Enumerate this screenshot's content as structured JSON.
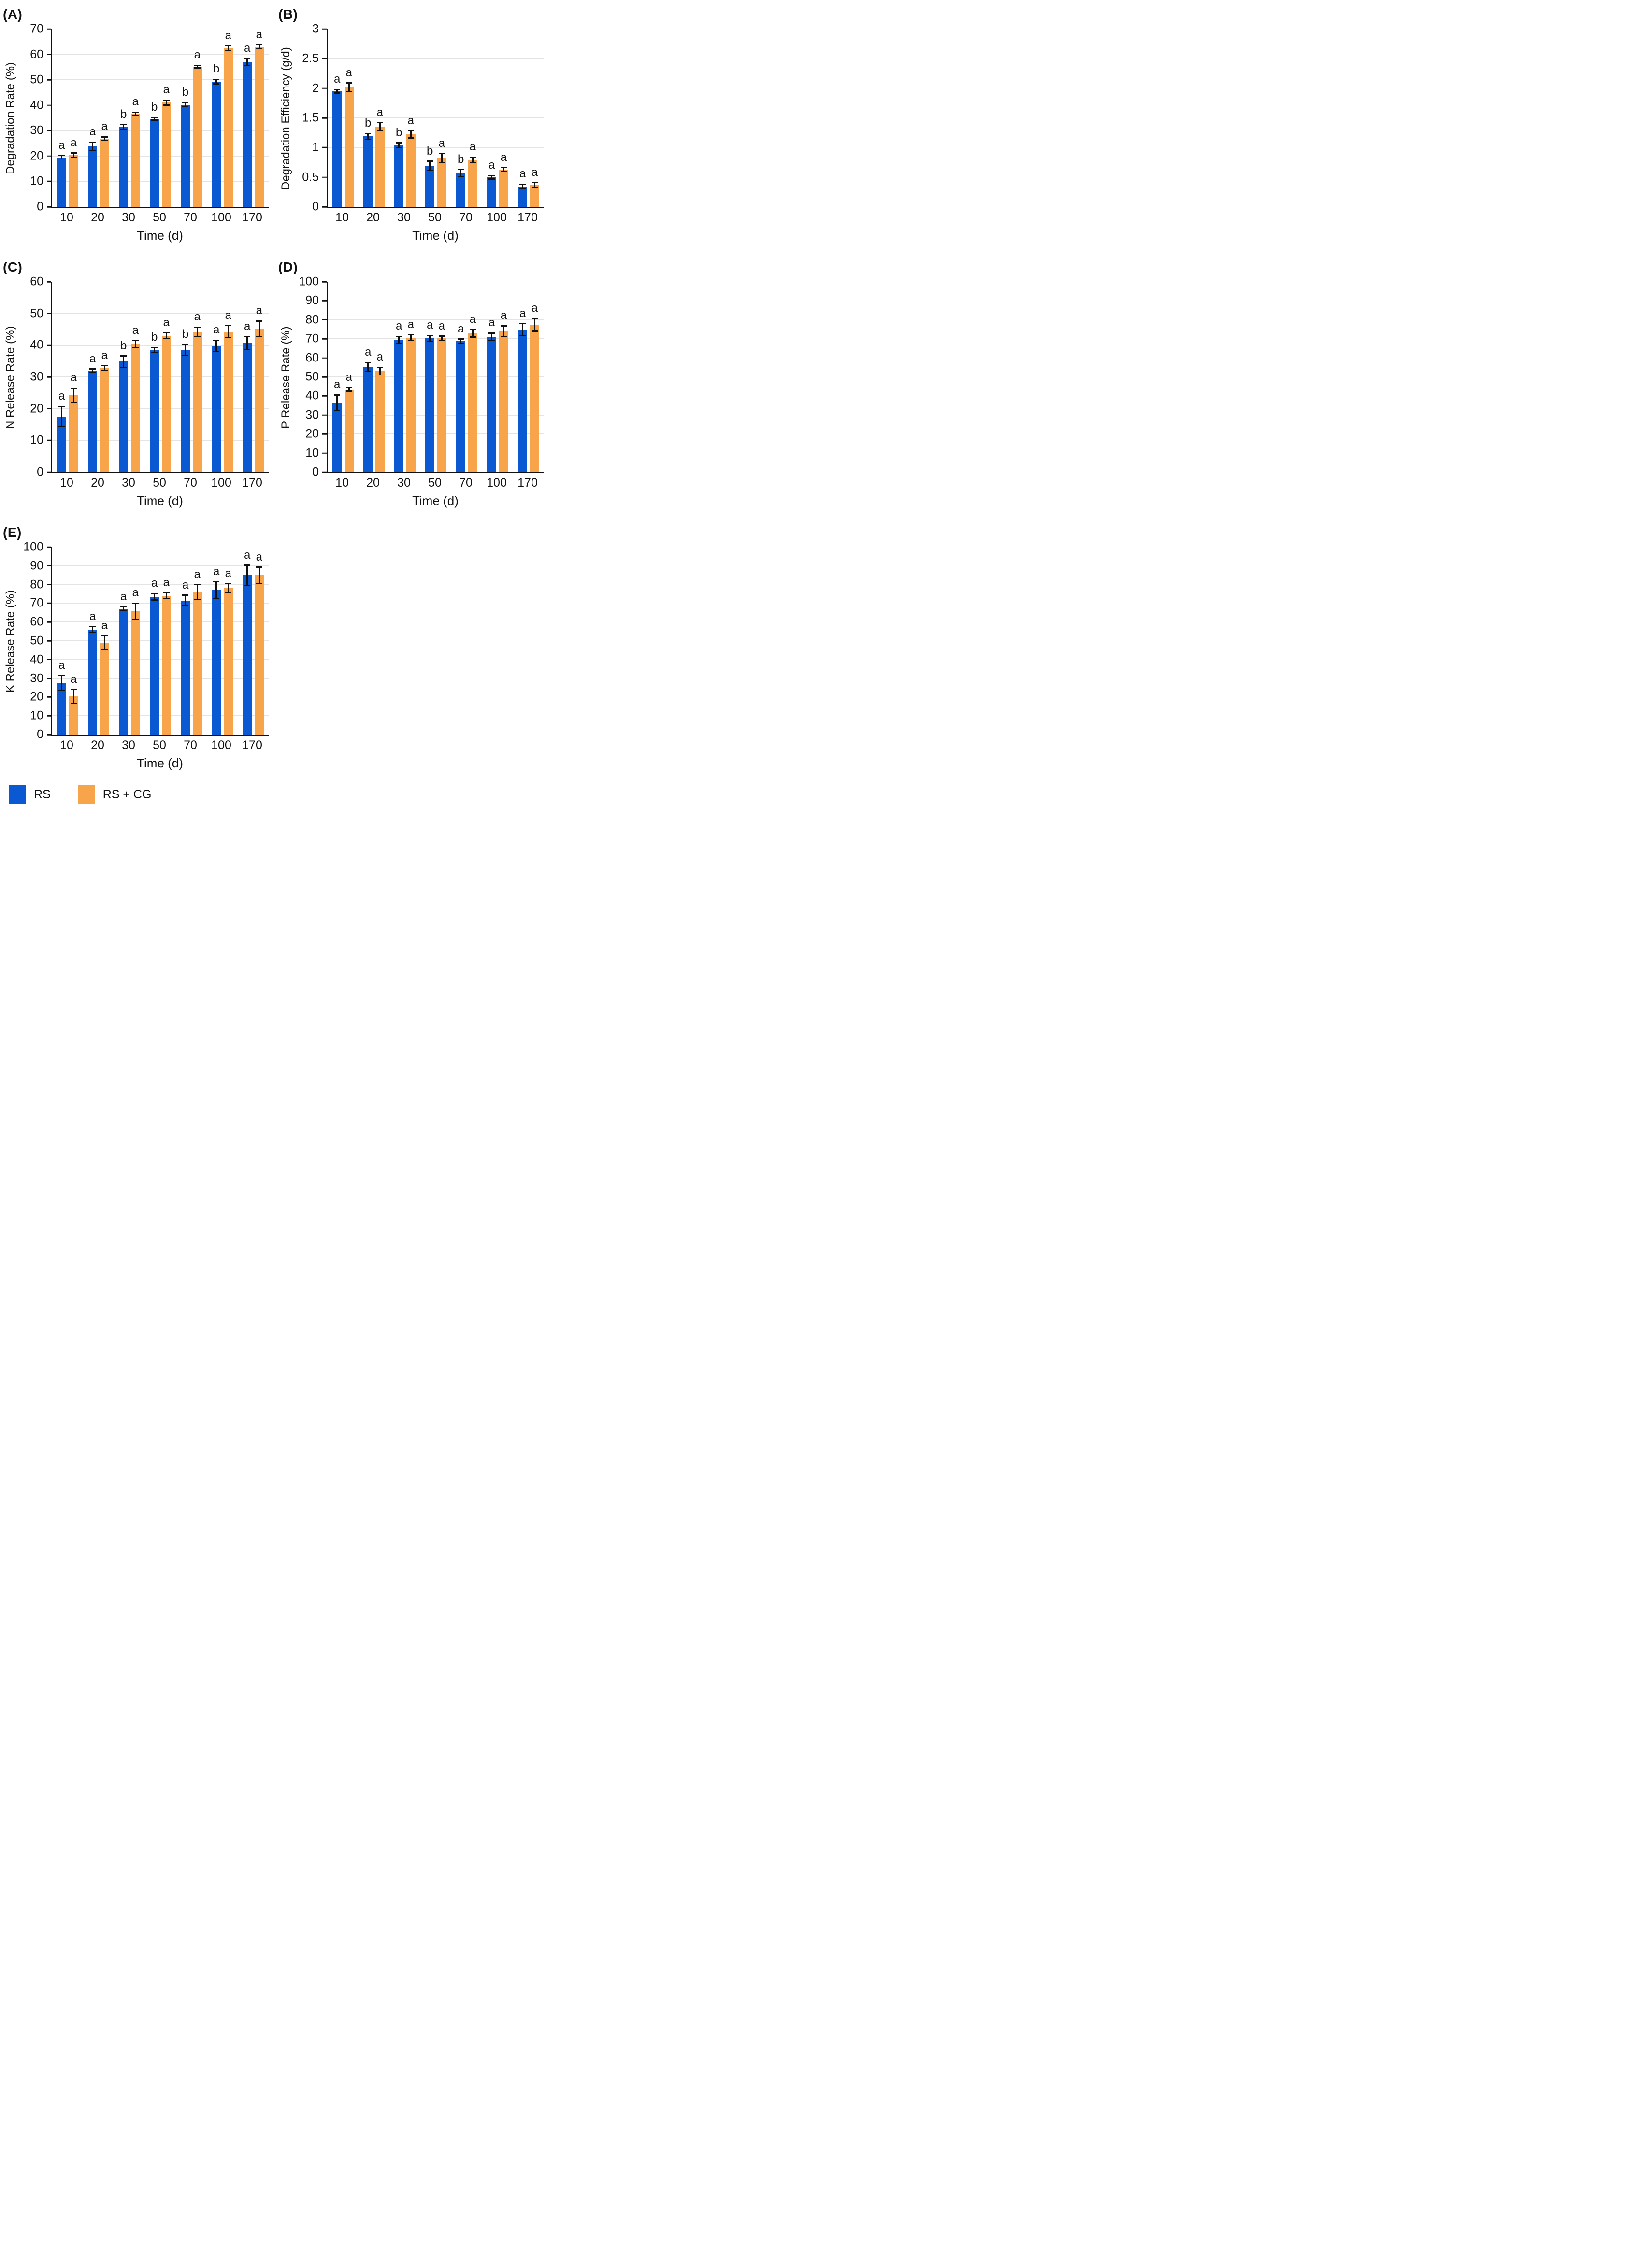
{
  "colors": {
    "rs_blue": "#0B58D3",
    "rs_cg_orange": "#F8A44B",
    "grid": "#E4E4E4",
    "axis": "#111111"
  },
  "legend": {
    "items": [
      {
        "label": "RS",
        "color": "#0B58D3"
      },
      {
        "label": "RS + CG",
        "color": "#F8A44B"
      }
    ]
  },
  "chart_data": [
    {
      "type": "bar",
      "panel_label": "(A)",
      "title": "",
      "xlabel": "Time (d)",
      "ylabel": "Degradation Rate (%)",
      "ylim": [
        0,
        70
      ],
      "yticks": [
        0,
        10,
        20,
        30,
        40,
        50,
        60,
        70
      ],
      "ytick_labels": [
        "0",
        "10",
        "20",
        "30",
        "40",
        "50",
        "60",
        "70"
      ],
      "categories": [
        "10",
        "20",
        "30",
        "50",
        "70",
        "100",
        "170"
      ],
      "grid": true,
      "legend_position": "bottom",
      "series": [
        {
          "name": "RS",
          "color": "#0B58D3",
          "values": [
            19.5,
            23.9,
            31.4,
            34.6,
            40.2,
            49.3,
            57.0
          ],
          "errors": [
            0.7,
            1.6,
            1.0,
            0.5,
            0.8,
            0.9,
            1.4
          ],
          "sig_letters": [
            "a",
            "a",
            "b",
            "b",
            "b",
            "b",
            "a"
          ]
        },
        {
          "name": "RS + CG",
          "color": "#F8A44B",
          "values": [
            20.3,
            26.9,
            36.6,
            41.0,
            55.2,
            62.4,
            63.0
          ],
          "errors": [
            0.9,
            0.6,
            0.7,
            1.0,
            0.5,
            0.9,
            0.8
          ],
          "sig_letters": [
            "a",
            "a",
            "a",
            "a",
            "a",
            "a",
            "a"
          ]
        }
      ]
    },
    {
      "type": "bar",
      "panel_label": "(B)",
      "title": "",
      "xlabel": "Time (d)",
      "ylabel": "Degradation Efficiency (g/d)",
      "ylim": [
        0,
        3
      ],
      "yticks": [
        0,
        0.5,
        1,
        1.5,
        2,
        2.5,
        3
      ],
      "ytick_labels": [
        "0",
        "0.5",
        "1",
        "1.5",
        "2",
        "2.5",
        "3"
      ],
      "categories": [
        "10",
        "20",
        "30",
        "50",
        "70",
        "100",
        "170"
      ],
      "grid": true,
      "legend_position": "bottom",
      "series": [
        {
          "name": "RS",
          "color": "#0B58D3",
          "values": [
            1.95,
            1.19,
            1.04,
            0.69,
            0.57,
            0.5,
            0.34
          ],
          "errors": [
            0.03,
            0.05,
            0.04,
            0.08,
            0.06,
            0.03,
            0.04
          ],
          "sig_letters": [
            "a",
            "b",
            "b",
            "b",
            "b",
            "a",
            "a"
          ]
        },
        {
          "name": "RS + CG",
          "color": "#F8A44B",
          "values": [
            2.02,
            1.35,
            1.22,
            0.82,
            0.79,
            0.63,
            0.37
          ],
          "errors": [
            0.07,
            0.07,
            0.06,
            0.08,
            0.05,
            0.03,
            0.04
          ],
          "sig_letters": [
            "a",
            "a",
            "a",
            "a",
            "a",
            "a",
            "a"
          ]
        }
      ]
    },
    {
      "type": "bar",
      "panel_label": "(C)",
      "title": "",
      "xlabel": "Time (d)",
      "ylabel": "N Release Rate (%)",
      "ylim": [
        0,
        60
      ],
      "yticks": [
        0,
        10,
        20,
        30,
        40,
        50,
        60
      ],
      "ytick_labels": [
        "0",
        "10",
        "20",
        "30",
        "40",
        "50",
        "60"
      ],
      "categories": [
        "10",
        "20",
        "30",
        "50",
        "70",
        "100",
        "170"
      ],
      "grid": true,
      "legend_position": "bottom",
      "series": [
        {
          "name": "RS",
          "color": "#0B58D3",
          "values": [
            17.5,
            32.0,
            34.8,
            38.5,
            38.5,
            39.7,
            40.6
          ],
          "errors": [
            3.2,
            0.5,
            1.8,
            0.8,
            1.7,
            1.8,
            2.1
          ],
          "sig_letters": [
            "a",
            "a",
            "b",
            "b",
            "b",
            "a",
            "a"
          ]
        },
        {
          "name": "RS + CG",
          "color": "#F8A44B",
          "values": [
            24.3,
            32.8,
            40.4,
            43.0,
            44.2,
            44.3,
            45.2
          ],
          "errors": [
            2.2,
            0.7,
            1.0,
            0.9,
            1.5,
            1.9,
            2.4
          ],
          "sig_letters": [
            "a",
            "a",
            "a",
            "a",
            "a",
            "a",
            "a"
          ]
        }
      ]
    },
    {
      "type": "bar",
      "panel_label": "(D)",
      "title": "",
      "xlabel": "Time (d)",
      "ylabel": "P Release Rate (%)",
      "ylim": [
        0,
        100
      ],
      "yticks": [
        0,
        10,
        20,
        30,
        40,
        50,
        60,
        70,
        80,
        90,
        100
      ],
      "ytick_labels": [
        "0",
        "10",
        "20",
        "30",
        "40",
        "50",
        "60",
        "70",
        "80",
        "90",
        "100"
      ],
      "categories": [
        "10",
        "20",
        "30",
        "50",
        "70",
        "100",
        "170"
      ],
      "grid": true,
      "legend_position": "bottom",
      "series": [
        {
          "name": "RS",
          "color": "#0B58D3",
          "values": [
            36.5,
            55.2,
            69.5,
            70.3,
            68.7,
            71.0,
            74.8
          ],
          "errors": [
            4.0,
            2.3,
            1.8,
            1.5,
            1.2,
            2.0,
            3.2
          ],
          "sig_letters": [
            "a",
            "a",
            "a",
            "a",
            "a",
            "a",
            "a"
          ]
        },
        {
          "name": "RS + CG",
          "color": "#F8A44B",
          "values": [
            43.5,
            53.0,
            70.6,
            70.2,
            73.0,
            74.0,
            77.5
          ],
          "errors": [
            1.0,
            2.0,
            1.5,
            1.2,
            2.0,
            2.8,
            3.2
          ],
          "sig_letters": [
            "a",
            "a",
            "a",
            "a",
            "a",
            "a",
            "a"
          ]
        }
      ]
    },
    {
      "type": "bar",
      "panel_label": "(E)",
      "title": "",
      "xlabel": "Time (d)",
      "ylabel": "K Release Rate (%)",
      "ylim": [
        0,
        100
      ],
      "yticks": [
        0,
        10,
        20,
        30,
        40,
        50,
        60,
        70,
        80,
        90,
        100
      ],
      "ytick_labels": [
        "0",
        "10",
        "20",
        "30",
        "40",
        "50",
        "60",
        "70",
        "80",
        "90",
        "100"
      ],
      "categories": [
        "10",
        "20",
        "30",
        "50",
        "70",
        "100",
        "170"
      ],
      "grid": true,
      "legend_position": "bottom",
      "series": [
        {
          "name": "RS",
          "color": "#0B58D3",
          "values": [
            27.5,
            56.0,
            67.0,
            73.5,
            71.5,
            77.0,
            85.0
          ],
          "errors": [
            4.0,
            1.5,
            1.0,
            1.7,
            2.8,
            4.5,
            5.3
          ],
          "sig_letters": [
            "a",
            "a",
            "a",
            "a",
            "a",
            "a",
            "a"
          ]
        },
        {
          "name": "RS + CG",
          "color": "#F8A44B",
          "values": [
            20.3,
            49.0,
            65.8,
            74.0,
            76.0,
            78.2,
            85.0
          ],
          "errors": [
            3.8,
            3.6,
            4.2,
            1.5,
            4.0,
            2.3,
            4.3
          ],
          "sig_letters": [
            "a",
            "a",
            "a",
            "a",
            "a",
            "a",
            "a"
          ]
        }
      ]
    }
  ]
}
